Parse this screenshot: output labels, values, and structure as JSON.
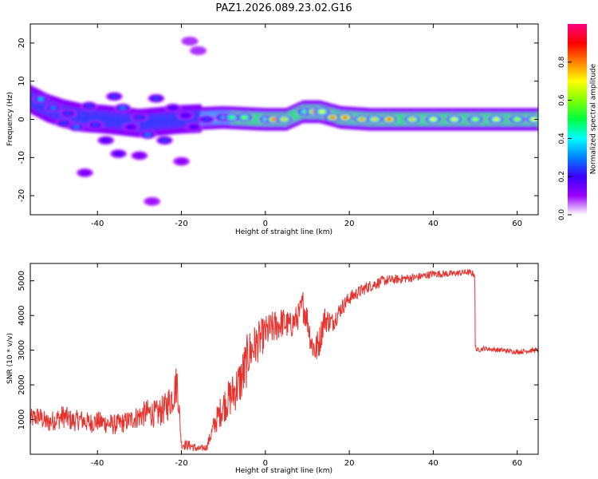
{
  "figure": {
    "title": "PAZ1.2026.089.23.02.G16"
  },
  "chart_data": [
    {
      "type": "heatmap",
      "title": "PAZ1.2026.089.23.02.G16",
      "xlabel": "Height of straight line (km)",
      "ylabel": "Frequency (Hz)",
      "xlim": [
        -56,
        65
      ],
      "ylim": [
        -25,
        25
      ],
      "xticks": [
        -40,
        -20,
        0,
        20,
        40,
        60
      ],
      "yticks": [
        -20,
        -10,
        0,
        10,
        20
      ],
      "colorbar": {
        "label": "Normalized spectral amplitude",
        "range": [
          0,
          1
        ],
        "ticks": [
          "0.0",
          "0.2",
          "0.4",
          "0.6",
          "0.8"
        ],
        "colormap": [
          "#ffffff",
          "#9a00ff",
          "#3a00ff",
          "#0080ff",
          "#00ffff",
          "#00ff40",
          "#80ff00",
          "#ffff00",
          "#ff8000",
          "#ff0000",
          "#ff0080"
        ]
      },
      "ridge_center": [
        {
          "x": -56,
          "f": 5.3
        },
        {
          "x": -52,
          "f": 3.0
        },
        {
          "x": -48,
          "f": 1.5
        },
        {
          "x": -44,
          "f": 0.5
        },
        {
          "x": -38,
          "f": 0.0
        },
        {
          "x": -30,
          "f": -1.0
        },
        {
          "x": -20,
          "f": 0.0
        },
        {
          "x": -10,
          "f": 0.5
        },
        {
          "x": 0,
          "f": 0.0
        },
        {
          "x": 5,
          "f": 0.0
        },
        {
          "x": 9,
          "f": 2.0
        },
        {
          "x": 13,
          "f": 2.0
        },
        {
          "x": 18,
          "f": 0.5
        },
        {
          "x": 25,
          "f": 0.0
        },
        {
          "x": 40,
          "f": 0.0
        },
        {
          "x": 65,
          "f": 0.0
        }
      ],
      "blobs": [
        {
          "x": -53.5,
          "f": 5.3,
          "a": 0.35
        },
        {
          "x": -50.5,
          "f": 3.0,
          "a": 0.3
        },
        {
          "x": -47,
          "f": 1.5,
          "a": 0.25
        },
        {
          "x": -45,
          "f": -2.0,
          "a": 0.3
        },
        {
          "x": -42,
          "f": 3.5,
          "a": 0.25
        },
        {
          "x": -40.5,
          "f": -1.5,
          "a": 0.25
        },
        {
          "x": -38,
          "f": -5.5,
          "a": 0.2
        },
        {
          "x": -36,
          "f": 6.0,
          "a": 0.25
        },
        {
          "x": -34,
          "f": 3.0,
          "a": 0.3
        },
        {
          "x": -32,
          "f": -2.0,
          "a": 0.2
        },
        {
          "x": -28,
          "f": -4.0,
          "a": 0.3
        },
        {
          "x": -26,
          "f": 5.5,
          "a": 0.25
        },
        {
          "x": -24,
          "f": -5.5,
          "a": 0.25
        },
        {
          "x": -22,
          "f": 3.0,
          "a": 0.2
        },
        {
          "x": -19,
          "f": 1.0,
          "a": 0.2
        },
        {
          "x": -17,
          "f": -2.0,
          "a": 0.2
        },
        {
          "x": -48,
          "f": -1.0,
          "a": 0.25
        },
        {
          "x": -35,
          "f": -9.0,
          "a": 0.2
        },
        {
          "x": -30,
          "f": 0.5,
          "a": 0.25
        },
        {
          "x": -14,
          "f": 0.0,
          "a": 0.25
        },
        {
          "x": -10,
          "f": 0.5,
          "a": 0.35
        },
        {
          "x": -8,
          "f": 0.5,
          "a": 0.55
        },
        {
          "x": -5,
          "f": 0.5,
          "a": 0.6
        },
        {
          "x": 0.5,
          "f": 0.0,
          "a": 0.6
        },
        {
          "x": 2,
          "f": 0.0,
          "a": 0.85
        },
        {
          "x": 4.5,
          "f": 0.0,
          "a": 0.75
        },
        {
          "x": 9.5,
          "f": 2.0,
          "a": 0.55
        },
        {
          "x": 11.5,
          "f": 2.0,
          "a": 0.8
        },
        {
          "x": 13.5,
          "f": 2.0,
          "a": 0.7
        },
        {
          "x": 16,
          "f": 0.5,
          "a": 0.85
        },
        {
          "x": 19,
          "f": 0.5,
          "a": 0.9
        },
        {
          "x": 23,
          "f": 0.0,
          "a": 0.8
        },
        {
          "x": 26,
          "f": 0.0,
          "a": 0.75
        },
        {
          "x": 29.5,
          "f": 0.0,
          "a": 0.9
        },
        {
          "x": 35,
          "f": 0.0,
          "a": 0.75
        },
        {
          "x": 40,
          "f": 0.0,
          "a": 0.7
        },
        {
          "x": 45,
          "f": 0.0,
          "a": 0.7
        },
        {
          "x": 50,
          "f": 0.0,
          "a": 0.65
        },
        {
          "x": 55,
          "f": 0.0,
          "a": 0.7
        },
        {
          "x": 60,
          "f": 0.0,
          "a": 0.65
        },
        {
          "x": 64,
          "f": 0.0,
          "a": 0.7
        },
        {
          "x": -27,
          "f": -21.5,
          "a": 0.1
        },
        {
          "x": -43,
          "f": -14.0,
          "a": 0.15
        },
        {
          "x": -30,
          "f": -9.5,
          "a": 0.15
        },
        {
          "x": -20,
          "f": -11.0,
          "a": 0.12
        },
        {
          "x": -18,
          "f": 20.5,
          "a": 0.08
        },
        {
          "x": -16,
          "f": 18.0,
          "a": 0.08
        }
      ]
    },
    {
      "type": "line",
      "xlabel": "Height of straight line (km)",
      "ylabel": "SNR (10 * v/v)",
      "xlim": [
        -56,
        65
      ],
      "ylim": [
        0,
        5500
      ],
      "xticks": [
        -40,
        -20,
        0,
        20,
        40,
        60
      ],
      "yticks": [
        1000,
        2000,
        3000,
        4000,
        5000
      ],
      "series": [
        {
          "name": "SNR",
          "color": "#e8322e",
          "x": [
            -56,
            -54,
            -52,
            -50,
            -48,
            -46,
            -44,
            -42,
            -40,
            -38,
            -36,
            -34,
            -32,
            -30,
            -28,
            -26,
            -24,
            -22,
            -21,
            -20,
            -18,
            -16,
            -14,
            -12,
            -10,
            -8,
            -6,
            -5,
            -4,
            -2,
            0,
            2,
            4,
            6,
            8,
            9,
            10,
            11,
            12,
            13,
            14,
            16,
            18,
            20,
            24,
            28,
            32,
            36,
            40,
            44,
            48,
            49.9,
            50,
            50.5,
            52,
            56,
            60,
            64,
            65
          ],
          "y": [
            1000,
            1100,
            900,
            1000,
            1100,
            950,
            1000,
            900,
            950,
            900,
            850,
            900,
            1000,
            1100,
            1200,
            1150,
            1300,
            1700,
            2100,
            300,
            250,
            150,
            200,
            900,
            1400,
            1700,
            2100,
            2400,
            2900,
            3200,
            3500,
            3650,
            3800,
            3700,
            4000,
            4300,
            3900,
            3200,
            3000,
            3300,
            3900,
            3800,
            4200,
            4500,
            4800,
            5000,
            5050,
            5100,
            5200,
            5200,
            5250,
            5200,
            3100,
            3000,
            3050,
            3000,
            2950,
            3000,
            3000
          ],
          "noise": [
            300,
            300,
            300,
            300,
            350,
            300,
            300,
            300,
            300,
            300,
            300,
            300,
            300,
            350,
            400,
            400,
            450,
            550,
            600,
            150,
            150,
            100,
            100,
            350,
            500,
            600,
            700,
            800,
            700,
            600,
            500,
            500,
            450,
            400,
            400,
            500,
            400,
            450,
            500,
            450,
            400,
            300,
            250,
            200,
            180,
            150,
            130,
            120,
            110,
            100,
            90,
            90,
            70,
            70,
            70,
            70,
            70,
            70,
            70
          ]
        }
      ]
    }
  ]
}
